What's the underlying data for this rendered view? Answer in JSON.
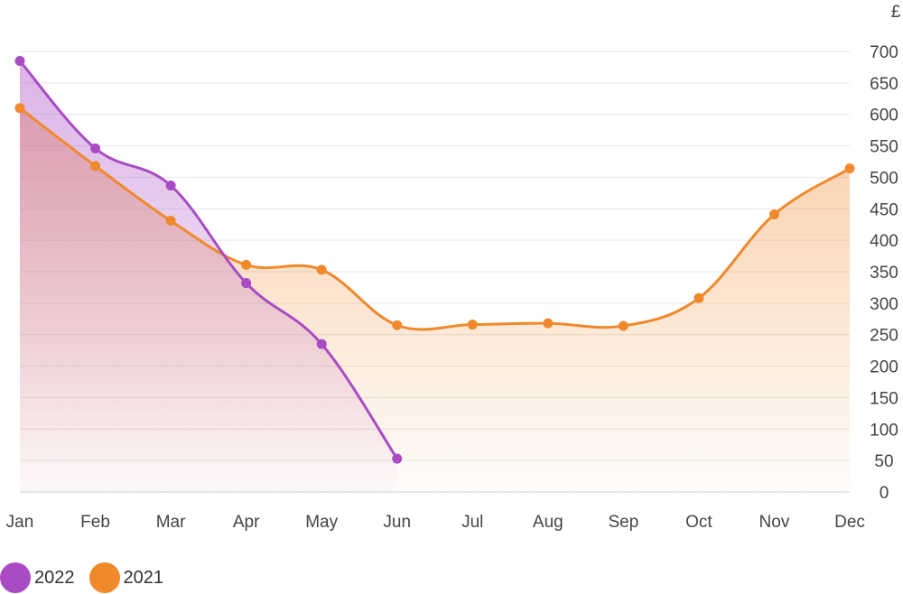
{
  "chart_data": {
    "type": "area",
    "unit_label": "£",
    "categories": [
      "Jan",
      "Feb",
      "Mar",
      "Apr",
      "May",
      "Jun",
      "Jul",
      "Aug",
      "Sep",
      "Oct",
      "Nov",
      "Dec"
    ],
    "y_ticks": [
      0,
      50,
      100,
      150,
      200,
      250,
      300,
      350,
      400,
      450,
      500,
      550,
      600,
      650,
      700
    ],
    "ylim": [
      0,
      700
    ],
    "grid": true,
    "y_axis_position": "right",
    "legend_position": "bottom-left",
    "series": [
      {
        "name": "2022",
        "color": "#a94cc4",
        "values": [
          685,
          546,
          487,
          332,
          235,
          53,
          null,
          null,
          null,
          null,
          null,
          null
        ]
      },
      {
        "name": "2021",
        "color": "#f0892c",
        "values": [
          610,
          518,
          431,
          361,
          353,
          265,
          266,
          268,
          264,
          308,
          441,
          514
        ]
      }
    ]
  },
  "legend": {
    "items": [
      {
        "label": "2022",
        "color": "#a94cc4"
      },
      {
        "label": "2021",
        "color": "#f0892c"
      }
    ]
  }
}
